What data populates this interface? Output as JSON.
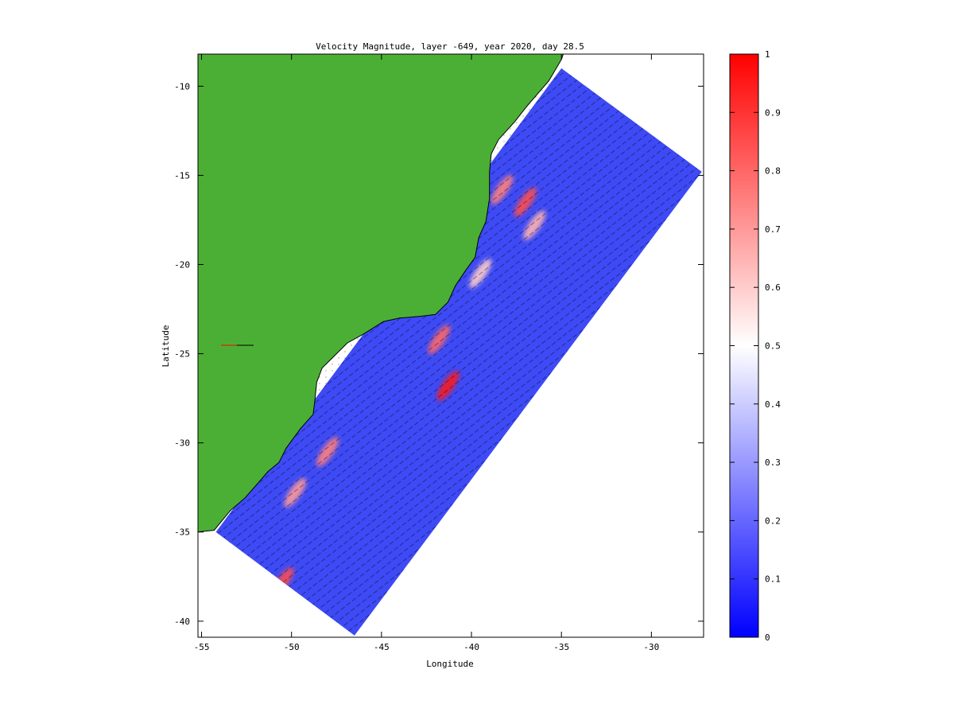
{
  "chart_data": {
    "type": "heatmap",
    "title": "Velocity Magnitude, layer -649, year 2020, day 28.5",
    "xlabel": "Longitude",
    "ylabel": "Latitude",
    "xlim": [
      -55.2,
      -27.1
    ],
    "ylim": [
      -40.9,
      -8.2
    ],
    "xticks": [
      -55,
      -50,
      -45,
      -40,
      -35,
      -30
    ],
    "yticks": [
      -10,
      -15,
      -20,
      -25,
      -30,
      -35,
      -40
    ],
    "grid": false,
    "land_color": "#4caf35",
    "model_domain_corners": [
      {
        "lon": -35.0,
        "lat": -9.0
      },
      {
        "lon": -27.2,
        "lat": -14.8
      },
      {
        "lon": -46.5,
        "lat": -40.8
      },
      {
        "lon": -54.2,
        "lat": -35.0
      }
    ],
    "high_speed_features": [
      {
        "lon": -41.3,
        "lat": -26.8,
        "value": 0.95
      },
      {
        "lon": -41.8,
        "lat": -24.2,
        "value": 0.8
      },
      {
        "lon": -37.0,
        "lat": -16.5,
        "value": 0.85
      },
      {
        "lon": -38.3,
        "lat": -15.8,
        "value": 0.75
      },
      {
        "lon": -48.0,
        "lat": -30.5,
        "value": 0.75
      },
      {
        "lon": -49.8,
        "lat": -32.8,
        "value": 0.7
      },
      {
        "lon": -50.5,
        "lat": -37.8,
        "value": 0.85
      },
      {
        "lon": -36.5,
        "lat": -17.8,
        "value": 0.65
      },
      {
        "lon": -39.5,
        "lat": -20.5,
        "value": 0.6
      }
    ],
    "colorbar": {
      "min": 0,
      "max": 1,
      "ticks": [
        0,
        0.1,
        0.2,
        0.3,
        0.4,
        0.5,
        0.6,
        0.7,
        0.8,
        0.9,
        1
      ],
      "colors": [
        "#0000ff",
        "#ffffff",
        "#ff0000"
      ]
    }
  }
}
